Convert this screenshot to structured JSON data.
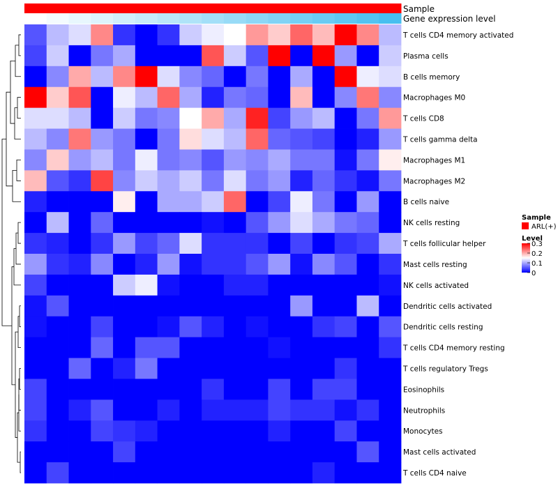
{
  "chart_data": {
    "type": "heatmap",
    "annotation_rows": [
      {
        "label": "Sample",
        "color_start": "#ff0000",
        "color_end": "#ff0000"
      },
      {
        "label": "Gene expression level",
        "color_start": "#ffffff",
        "color_end": "#47bff0"
      }
    ],
    "legend": {
      "sample_title": "Sample",
      "sample_entry": "ARL(+)",
      "sample_color": "#ff0000",
      "level_title": "Level",
      "level_ticks": [
        "0.3",
        "0.2",
        "0.1",
        "0"
      ],
      "level_min": 0,
      "level_max": 0.3
    },
    "colors": {
      "low": "#0000ff",
      "mid": "#ffffff",
      "high": "#ff0000"
    },
    "rows": [
      "T cells CD4 memory activated",
      "Plasma cells",
      "B cells memory",
      "Macrophages M0",
      "T cells CD8",
      "T cells gamma delta",
      "Macrophages M1",
      "Macrophages M2",
      "B cells naive",
      "NK cells resting",
      "T cells follicular helper",
      "Mast cells resting",
      "NK cells activated",
      "Dendritic cells activated",
      "Dendritic cells resting",
      "T cells CD4 memory resting",
      "T cells regulatory  Tregs",
      "Eosinophils",
      "Neutrophils",
      "Monocytes",
      "Mast cells activated",
      "T cells CD4 naive"
    ],
    "values": [
      [
        0.05,
        0.11,
        0.13,
        0.22,
        0.03,
        0.0,
        0.03,
        0.12,
        0.14,
        0.15,
        0.21,
        0.18,
        0.24,
        0.19,
        0.3,
        0.22,
        0.11
      ],
      [
        0.04,
        0.12,
        0.0,
        0.07,
        0.1,
        0.0,
        0.0,
        0.0,
        0.25,
        0.12,
        0.05,
        0.3,
        0.0,
        0.3,
        0.09,
        0.0,
        0.12
      ],
      [
        0.0,
        0.08,
        0.2,
        0.11,
        0.22,
        0.3,
        0.13,
        0.08,
        0.06,
        0.0,
        0.07,
        0.0,
        0.1,
        0.0,
        0.3,
        0.14,
        0.13
      ],
      [
        0.3,
        0.18,
        0.25,
        0.0,
        0.14,
        0.11,
        0.24,
        0.1,
        0.02,
        0.07,
        0.06,
        0.0,
        0.19,
        0.0,
        0.08,
        0.23,
        0.08
      ],
      [
        0.13,
        0.13,
        0.11,
        0.0,
        0.12,
        0.07,
        0.08,
        0.15,
        0.2,
        0.1,
        0.28,
        0.04,
        0.09,
        0.11,
        0.0,
        0.07,
        0.21
      ],
      [
        0.11,
        0.08,
        0.23,
        0.09,
        0.07,
        0.0,
        0.07,
        0.17,
        0.13,
        0.11,
        0.24,
        0.06,
        0.05,
        0.04,
        0.0,
        0.02,
        0.09
      ],
      [
        0.08,
        0.18,
        0.09,
        0.11,
        0.07,
        0.14,
        0.07,
        0.08,
        0.05,
        0.09,
        0.08,
        0.1,
        0.07,
        0.07,
        0.01,
        0.07,
        0.16
      ],
      [
        0.19,
        0.05,
        0.03,
        0.26,
        0.08,
        0.12,
        0.1,
        0.12,
        0.07,
        0.13,
        0.07,
        0.09,
        0.02,
        0.06,
        0.03,
        0.01,
        0.07
      ],
      [
        0.02,
        0.0,
        0.0,
        0.0,
        0.16,
        0.0,
        0.1,
        0.1,
        0.12,
        0.24,
        0.0,
        0.04,
        0.14,
        0.07,
        0.0,
        0.09,
        0.0
      ],
      [
        0.0,
        0.11,
        0.0,
        0.06,
        0.0,
        0.0,
        0.0,
        0.0,
        0.01,
        0.0,
        0.05,
        0.09,
        0.13,
        0.1,
        0.07,
        0.06,
        0.0
      ],
      [
        0.03,
        0.02,
        0.0,
        0.03,
        0.09,
        0.04,
        0.06,
        0.13,
        0.03,
        0.03,
        0.03,
        0.0,
        0.04,
        0.0,
        0.03,
        0.04,
        0.1
      ],
      [
        0.09,
        0.03,
        0.02,
        0.08,
        0.0,
        0.02,
        0.09,
        0.01,
        0.03,
        0.03,
        0.05,
        0.09,
        0.01,
        0.08,
        0.05,
        0.0,
        0.03
      ],
      [
        0.04,
        0.0,
        0.0,
        0.0,
        0.12,
        0.14,
        0.01,
        0.0,
        0.0,
        0.02,
        0.02,
        0.0,
        0.0,
        0.0,
        0.0,
        0.0,
        0.01
      ],
      [
        0.01,
        0.05,
        0.0,
        0.0,
        0.0,
        0.0,
        0.0,
        0.0,
        0.0,
        0.0,
        0.0,
        0.0,
        0.09,
        0.0,
        0.0,
        0.11,
        0.0
      ],
      [
        0.01,
        0.0,
        0.0,
        0.04,
        0.0,
        0.0,
        0.01,
        0.05,
        0.02,
        0.0,
        0.01,
        0.0,
        0.0,
        0.03,
        0.04,
        0.0,
        0.05
      ],
      [
        0.0,
        0.0,
        0.0,
        0.06,
        0.0,
        0.05,
        0.05,
        0.0,
        0.0,
        0.0,
        0.0,
        0.01,
        0.0,
        0.0,
        0.0,
        0.0,
        0.03
      ],
      [
        0.0,
        0.0,
        0.06,
        0.0,
        0.02,
        0.07,
        0.0,
        0.0,
        0.0,
        0.0,
        0.0,
        0.0,
        0.0,
        0.0,
        0.03,
        0.0,
        0.0
      ],
      [
        0.04,
        0.0,
        0.0,
        0.0,
        0.0,
        0.0,
        0.0,
        0.0,
        0.03,
        0.0,
        0.0,
        0.04,
        0.0,
        0.04,
        0.04,
        0.0,
        0.0
      ],
      [
        0.04,
        0.0,
        0.02,
        0.05,
        0.0,
        0.0,
        0.02,
        0.0,
        0.02,
        0.02,
        0.02,
        0.04,
        0.03,
        0.03,
        0.01,
        0.03,
        0.0
      ],
      [
        0.03,
        0.0,
        0.0,
        0.04,
        0.03,
        0.02,
        0.0,
        0.0,
        0.0,
        0.0,
        0.0,
        0.02,
        0.0,
        0.0,
        0.04,
        0.0,
        0.0
      ],
      [
        0.0,
        0.0,
        0.0,
        0.0,
        0.04,
        0.0,
        0.0,
        0.0,
        0.0,
        0.0,
        0.0,
        0.0,
        0.0,
        0.0,
        0.0,
        0.05,
        0.0
      ],
      [
        0.0,
        0.04,
        0.0,
        0.0,
        0.0,
        0.0,
        0.0,
        0.0,
        0.0,
        0.0,
        0.0,
        0.0,
        0.0,
        0.02,
        0.0,
        0.0,
        0.0
      ]
    ]
  }
}
